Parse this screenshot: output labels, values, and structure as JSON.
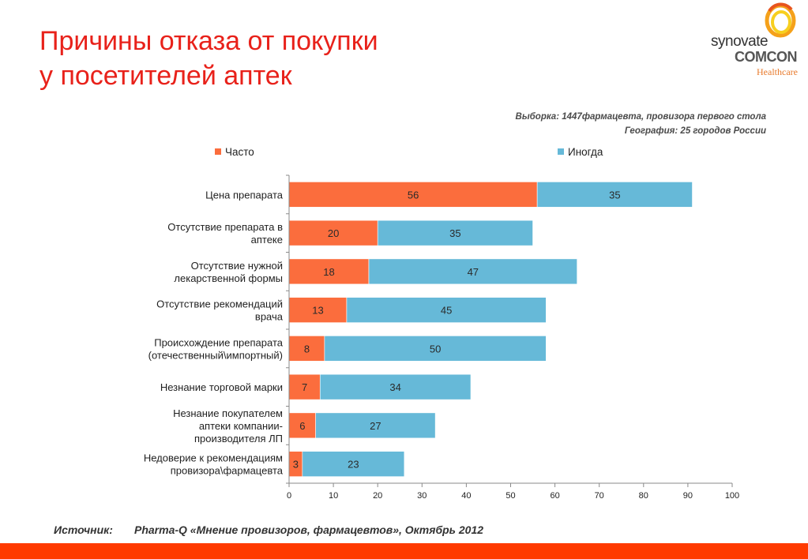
{
  "title": {
    "line1": "Причины отказа от покупки",
    "line2": "у посетителей аптек"
  },
  "logo": {
    "word1": "synovate",
    "word2": "COMCON",
    "word3": "Healthcare"
  },
  "sample": {
    "line1": "Выборка: 1447фармацевта, провизора первого стола",
    "line2": "География: 25 городов  России"
  },
  "source": {
    "label": "Источник:",
    "text": "Pharma-Q «Мнение провизоров, фармацевтов», Октябрь 2012"
  },
  "chart_data": {
    "type": "bar",
    "orientation": "horizontal",
    "stacked": true,
    "categories": [
      [
        "Цена препарата"
      ],
      [
        "Отсутствие препарата в",
        "аптеке"
      ],
      [
        "Отсутствие нужной",
        "лекарственной формы"
      ],
      [
        "Отсутствие рекомендаций",
        "врача"
      ],
      [
        "Происхождение препарата",
        "(отечественный\\импортный)"
      ],
      [
        "Незнание торговой марки"
      ],
      [
        "Незнание покупателем",
        "аптеки компании-",
        "производителя ЛП"
      ],
      [
        "Недоверие к рекомендациям",
        "провизора\\фармацевта"
      ]
    ],
    "series": [
      {
        "name": "Часто",
        "color": "#fb6d3d",
        "values": [
          56,
          20,
          18,
          13,
          8,
          7,
          6,
          3
        ]
      },
      {
        "name": "Иногда",
        "color": "#66b9d8",
        "values": [
          35,
          35,
          47,
          45,
          50,
          34,
          27,
          23
        ]
      }
    ],
    "xlim": [
      0,
      100
    ],
    "xticks": [
      "0",
      "10",
      "20",
      "30",
      "40",
      "50",
      "60",
      "70",
      "80",
      "90",
      "100"
    ],
    "legend_position": "top",
    "grid": false,
    "data_labels": true
  }
}
